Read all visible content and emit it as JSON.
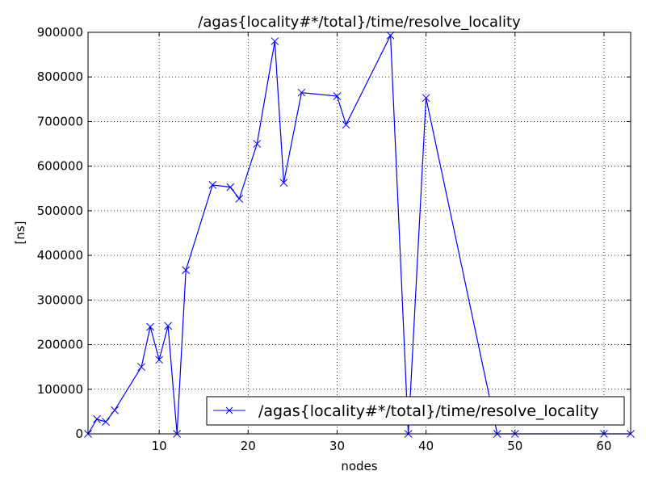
{
  "chart_data": {
    "type": "line",
    "title": "/agas{locality#*/total}/time/resolve_locality",
    "xlabel": "nodes",
    "ylabel": "[ns]",
    "xlim": [
      2,
      63
    ],
    "ylim": [
      0,
      900000
    ],
    "x_ticks": [
      10,
      20,
      30,
      40,
      50,
      60
    ],
    "y_ticks": [
      0,
      100000,
      200000,
      300000,
      400000,
      500000,
      600000,
      700000,
      800000,
      900000
    ],
    "grid": true,
    "legend_position": "lower-right",
    "series": [
      {
        "name": "/agas{locality#*/total}/time/resolve_locality",
        "color": "#0000ff",
        "marker": "x",
        "x": [
          2,
          3,
          4,
          5,
          8,
          9,
          10,
          11,
          12,
          13,
          16,
          18,
          19,
          21,
          23,
          24,
          26,
          30,
          31,
          36,
          38,
          40,
          48,
          50,
          60,
          63
        ],
        "y": [
          0,
          33000,
          27000,
          53000,
          150000,
          240000,
          166000,
          242000,
          0,
          367000,
          558000,
          553000,
          527000,
          650000,
          880000,
          563000,
          765000,
          757000,
          693000,
          893000,
          0,
          753000,
          0,
          0,
          0,
          0
        ]
      }
    ]
  }
}
